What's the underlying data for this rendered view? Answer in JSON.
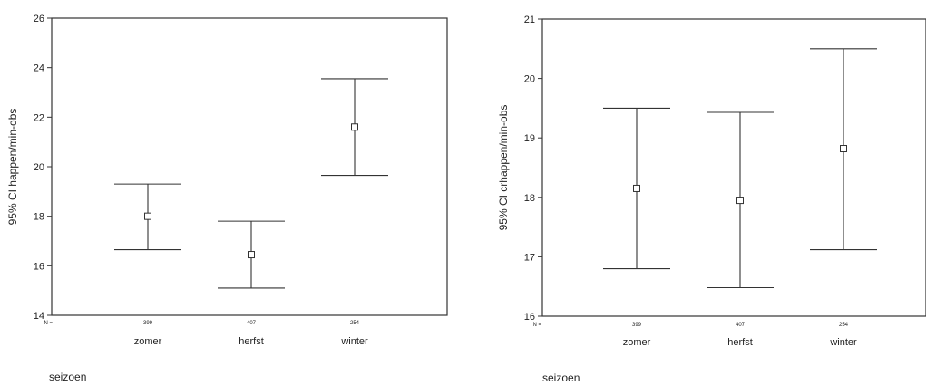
{
  "chart_data": [
    {
      "type": "errorbar",
      "ylabel": "95% CI happen/min-obs",
      "xlabel": "seizoen",
      "n_label": "N =",
      "categories": [
        "zomer",
        "herfst",
        "winter"
      ],
      "n": [
        "399",
        "407",
        "254"
      ],
      "means": [
        18.0,
        16.45,
        21.6
      ],
      "lower": [
        16.65,
        15.1,
        19.65
      ],
      "upper": [
        19.3,
        17.8,
        23.55
      ],
      "ylim": [
        14,
        26
      ],
      "yticks": [
        14,
        16,
        18,
        20,
        22,
        24,
        26
      ],
      "ytick_labels": [
        "14",
        "16",
        "18",
        "20",
        "22",
        "24",
        "26"
      ],
      "grid": false
    },
    {
      "type": "errorbar",
      "ylabel": "95% CI crhappen/min-obs",
      "xlabel": "seizoen",
      "n_label": "N =",
      "categories": [
        "zomer",
        "herfst",
        "winter"
      ],
      "n": [
        "399",
        "407",
        "254"
      ],
      "means": [
        18.15,
        17.95,
        18.82
      ],
      "lower": [
        16.8,
        16.48,
        17.12
      ],
      "upper": [
        19.5,
        19.43,
        20.5
      ],
      "ylim": [
        16,
        21
      ],
      "yticks": [
        16,
        17,
        18,
        19,
        20,
        21
      ],
      "ytick_labels": [
        "16",
        "17",
        "18",
        "19",
        "20",
        "21"
      ],
      "grid": false
    }
  ]
}
